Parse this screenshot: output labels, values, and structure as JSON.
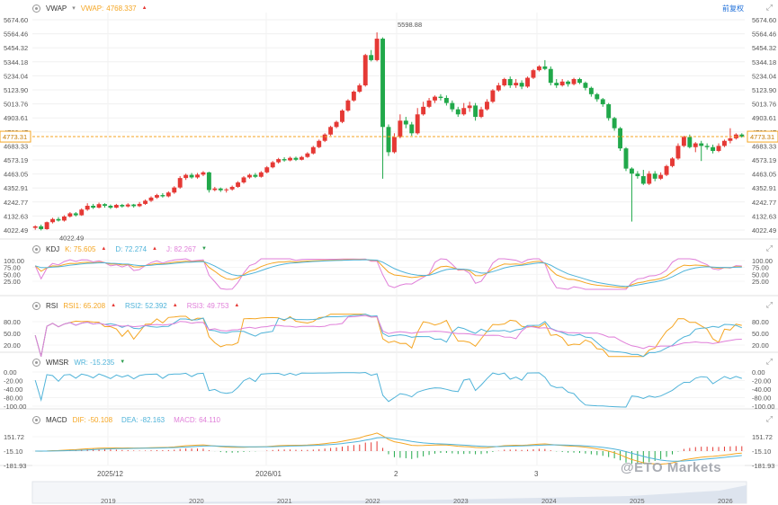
{
  "header": {
    "main_indicator": "VWAP",
    "main_value_label": "VWAP:",
    "main_value": "4768.337",
    "right_button": "前复权"
  },
  "indicators": {
    "kdj": {
      "name": "KDJ",
      "k_label": "K:",
      "k_value": "75.605",
      "d_label": "D:",
      "d_value": "72.274",
      "j_label": "J:",
      "j_value": "82.267"
    },
    "rsi": {
      "name": "RSI",
      "r1_label": "RSI1:",
      "r1_value": "65.208",
      "r2_label": "RSI2:",
      "r2_value": "52.392",
      "r3_label": "RSI3:",
      "r3_value": "49.753"
    },
    "wmsr": {
      "name": "WMSR",
      "wr_label": "WR:",
      "wr_value": "-15.235"
    },
    "macd": {
      "name": "MACD",
      "dif_label": "DIF:",
      "dif_value": "-50.108",
      "dea_label": "DEA:",
      "dea_value": "-82.163",
      "macd_label": "MACD:",
      "macd_value": "64.110"
    }
  },
  "colors": {
    "up": "#e53935",
    "down": "#21a84a",
    "k": "#f5a623",
    "d": "#4fb3d9",
    "j": "#e07fd9",
    "price_line": "#f5a623",
    "wr": "#4fb3d9",
    "accent": "#1e6fd9"
  },
  "watermark": "@ETO Markets",
  "chart_data": {
    "type": "candlestick",
    "price_axis_ticks": [
      "5674.60",
      "5564.46",
      "5454.32",
      "5344.18",
      "5234.04",
      "5123.90",
      "5013.76",
      "4903.61",
      "4793.47",
      "4683.33",
      "4573.19",
      "4463.05",
      "4352.91",
      "4242.77",
      "4132.63",
      "4022.49"
    ],
    "current_price": "4773.31",
    "high_label": "5598.88",
    "low_label": "4022.49",
    "ylim": [
      3990,
      5700
    ],
    "x_labels": [
      "2025/12",
      "2026/01",
      "2",
      "3"
    ],
    "candles": [
      [
        4050,
        4062,
        4035,
        4070
      ],
      [
        4062,
        4040,
        4030,
        4075
      ],
      [
        4040,
        4095,
        4035,
        4100
      ],
      [
        4095,
        4120,
        4085,
        4130
      ],
      [
        4120,
        4108,
        4100,
        4135
      ],
      [
        4108,
        4140,
        4100,
        4150
      ],
      [
        4140,
        4165,
        4132,
        4175
      ],
      [
        4165,
        4150,
        4140,
        4175
      ],
      [
        4150,
        4195,
        4145,
        4205
      ],
      [
        4195,
        4225,
        4185,
        4245
      ],
      [
        4225,
        4210,
        4200,
        4240
      ],
      [
        4210,
        4238,
        4205,
        4250
      ],
      [
        4238,
        4225,
        4210,
        4245
      ],
      [
        4225,
        4210,
        4200,
        4235
      ],
      [
        4210,
        4232,
        4205,
        4240
      ],
      [
        4232,
        4220,
        4210,
        4240
      ],
      [
        4220,
        4235,
        4212,
        4245
      ],
      [
        4235,
        4222,
        4210,
        4240
      ],
      [
        4222,
        4240,
        4215,
        4255
      ],
      [
        4240,
        4265,
        4232,
        4275
      ],
      [
        4265,
        4290,
        4255,
        4300
      ],
      [
        4290,
        4310,
        4280,
        4320
      ],
      [
        4310,
        4300,
        4290,
        4325
      ],
      [
        4300,
        4330,
        4292,
        4340
      ],
      [
        4330,
        4370,
        4320,
        4380
      ],
      [
        4370,
        4445,
        4360,
        4460
      ],
      [
        4445,
        4470,
        4430,
        4480
      ],
      [
        4470,
        4450,
        4440,
        4485
      ],
      [
        4450,
        4472,
        4440,
        4485
      ],
      [
        4472,
        4490,
        4460,
        4500
      ],
      [
        4490,
        4350,
        4330,
        4495
      ],
      [
        4350,
        4362,
        4340,
        4375
      ],
      [
        4362,
        4348,
        4335,
        4370
      ],
      [
        4348,
        4355,
        4330,
        4365
      ],
      [
        4355,
        4375,
        4345,
        4385
      ],
      [
        4375,
        4410,
        4368,
        4420
      ],
      [
        4410,
        4450,
        4400,
        4460
      ],
      [
        4450,
        4470,
        4440,
        4480
      ],
      [
        4470,
        4455,
        4445,
        4485
      ],
      [
        4455,
        4490,
        4448,
        4500
      ],
      [
        4490,
        4530,
        4482,
        4540
      ],
      [
        4530,
        4570,
        4522,
        4580
      ],
      [
        4570,
        4595,
        4560,
        4605
      ],
      [
        4595,
        4585,
        4575,
        4610
      ],
      [
        4585,
        4605,
        4578,
        4615
      ],
      [
        4605,
        4590,
        4580,
        4615
      ],
      [
        4590,
        4612,
        4585,
        4620
      ],
      [
        4612,
        4640,
        4605,
        4650
      ],
      [
        4640,
        4690,
        4632,
        4700
      ],
      [
        4690,
        4740,
        4682,
        4750
      ],
      [
        4740,
        4790,
        4730,
        4800
      ],
      [
        4790,
        4850,
        4780,
        4860
      ],
      [
        4850,
        4890,
        4840,
        4900
      ],
      [
        4890,
        4980,
        4880,
        4990
      ],
      [
        4980,
        5060,
        4970,
        5070
      ],
      [
        5060,
        5130,
        5050,
        5140
      ],
      [
        5130,
        5180,
        5120,
        5195
      ],
      [
        5180,
        5420,
        5170,
        5430
      ],
      [
        5420,
        5380,
        5370,
        5460
      ],
      [
        5380,
        5550,
        5370,
        5600
      ],
      [
        5550,
        4850,
        4440,
        5560
      ],
      [
        4850,
        4650,
        4620,
        4870
      ],
      [
        4650,
        4770,
        4640,
        4800
      ],
      [
        4770,
        4900,
        4760,
        4950
      ],
      [
        4900,
        4870,
        4840,
        4930
      ],
      [
        4870,
        4800,
        4780,
        4890
      ],
      [
        4800,
        4950,
        4790,
        5000
      ],
      [
        4950,
        5010,
        4940,
        5050
      ],
      [
        5010,
        5060,
        5000,
        5080
      ],
      [
        5060,
        5090,
        5040,
        5100
      ],
      [
        5090,
        5080,
        5060,
        5110
      ],
      [
        5080,
        5040,
        5020,
        5100
      ],
      [
        5040,
        4990,
        4970,
        5060
      ],
      [
        4990,
        4950,
        4930,
        5010
      ],
      [
        4950,
        5000,
        4940,
        5040
      ],
      [
        5000,
        5020,
        4970,
        5050
      ],
      [
        5020,
        4930,
        4900,
        5040
      ],
      [
        4930,
        4990,
        4920,
        5010
      ],
      [
        4990,
        5050,
        4980,
        5070
      ],
      [
        5050,
        5140,
        5040,
        5150
      ],
      [
        5140,
        5180,
        5130,
        5200
      ],
      [
        5180,
        5230,
        5170,
        5240
      ],
      [
        5230,
        5180,
        5160,
        5250
      ],
      [
        5180,
        5200,
        5160,
        5230
      ],
      [
        5200,
        5170,
        5150,
        5220
      ],
      [
        5170,
        5240,
        5160,
        5250
      ],
      [
        5240,
        5300,
        5230,
        5310
      ],
      [
        5300,
        5330,
        5290,
        5340
      ],
      [
        5330,
        5310,
        5300,
        5380
      ],
      [
        5310,
        5200,
        5180,
        5330
      ],
      [
        5200,
        5180,
        5160,
        5230
      ],
      [
        5180,
        5210,
        5170,
        5230
      ],
      [
        5210,
        5190,
        5170,
        5220
      ],
      [
        5190,
        5230,
        5180,
        5240
      ],
      [
        5230,
        5200,
        5190,
        5240
      ],
      [
        5200,
        5160,
        5140,
        5210
      ],
      [
        5160,
        5110,
        5090,
        5170
      ],
      [
        5110,
        5070,
        5050,
        5120
      ],
      [
        5070,
        5030,
        5010,
        5080
      ],
      [
        5030,
        4920,
        4900,
        5040
      ],
      [
        4920,
        4840,
        4820,
        4930
      ],
      [
        4840,
        4680,
        4660,
        4850
      ],
      [
        4680,
        4520,
        4500,
        4690
      ],
      [
        4520,
        4480,
        4100,
        4530
      ],
      [
        4480,
        4460,
        4440,
        4500
      ],
      [
        4460,
        4400,
        4390,
        4510
      ],
      [
        4400,
        4480,
        4390,
        4500
      ],
      [
        4480,
        4440,
        4420,
        4500
      ],
      [
        4440,
        4470,
        4430,
        4490
      ],
      [
        4470,
        4540,
        4460,
        4550
      ],
      [
        4540,
        4600,
        4530,
        4610
      ],
      [
        4600,
        4700,
        4590,
        4720
      ],
      [
        4700,
        4770,
        4690,
        4780
      ],
      [
        4770,
        4690,
        4680,
        4790
      ],
      [
        4690,
        4720,
        4650,
        4730
      ],
      [
        4720,
        4700,
        4580,
        4740
      ],
      [
        4700,
        4690,
        4670,
        4720
      ],
      [
        4690,
        4660,
        4640,
        4710
      ],
      [
        4660,
        4700,
        4650,
        4720
      ],
      [
        4700,
        4740,
        4690,
        4750
      ],
      [
        4740,
        4760,
        4720,
        4840
      ],
      [
        4760,
        4790,
        4750,
        4800
      ],
      [
        4790,
        4773,
        4765,
        4800
      ]
    ],
    "indicators": {
      "kdj_axis": [
        "100.00",
        "75.00",
        "50.00",
        "25.00"
      ],
      "rsi_axis": [
        "80.00",
        "50.00",
        "20.00"
      ],
      "wmsr_axis": [
        "0.00",
        "-20.00",
        "-40.00",
        "-80.00",
        "-100.00"
      ],
      "macd_axis": [
        "151.72",
        "-15.10",
        "-181.93"
      ]
    },
    "navigator_years": [
      "2019",
      "2020",
      "2021",
      "2022",
      "2023",
      "2024",
      "2025",
      "2026"
    ]
  }
}
